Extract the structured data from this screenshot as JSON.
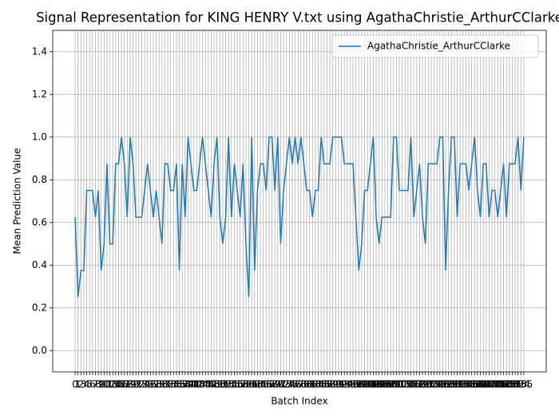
{
  "chart_data": {
    "type": "line",
    "title": "Signal Representation for KING HENRY V.txt using AgathaChristie_ArthurCClarke",
    "xlabel": "Batch Index",
    "ylabel": "Mean Prediction Value",
    "x": [
      0,
      1,
      2,
      3,
      4,
      5,
      6,
      7,
      8,
      9,
      10,
      11,
      12,
      13,
      14,
      15,
      16,
      17,
      18,
      19,
      20,
      21,
      22,
      23,
      24,
      25,
      26,
      27,
      28,
      29,
      30,
      31,
      32,
      33,
      34,
      35,
      36,
      37,
      38,
      39,
      40,
      41,
      42,
      43,
      44,
      45,
      46,
      47,
      48,
      49,
      50,
      51,
      52,
      53,
      54,
      55,
      56,
      57,
      58,
      59,
      60,
      61,
      62,
      63,
      64,
      65,
      66,
      67,
      68,
      69,
      70,
      71,
      72,
      73,
      74,
      75,
      76,
      77,
      78,
      79,
      80,
      81,
      82,
      83,
      84,
      85,
      86,
      87,
      88,
      89,
      90,
      91,
      92,
      93,
      94,
      95,
      96,
      97,
      98,
      99,
      100,
      101,
      102,
      103,
      104,
      105,
      106,
      107,
      108,
      109,
      110,
      111,
      112,
      113,
      114,
      115,
      116,
      117,
      118,
      119,
      120,
      121,
      122,
      123,
      124,
      125,
      126,
      127,
      128,
      129,
      130,
      131,
      132,
      133,
      134,
      135,
      136,
      137,
      138,
      139,
      140,
      141,
      142,
      143,
      144,
      145,
      146,
      147,
      148,
      149,
      150,
      151,
      152,
      153,
      154,
      155
    ],
    "series": [
      {
        "name": "AgathaChristie_ArthurCClarke",
        "color": "#1f77b4",
        "values": [
          0.625,
          0.25,
          0.375,
          0.375,
          0.75,
          0.75,
          0.75,
          0.625,
          0.75,
          0.375,
          0.5,
          0.875,
          0.5,
          0.5,
          0.875,
          0.875,
          1.0,
          0.875,
          0.625,
          1.0,
          0.875,
          0.625,
          0.625,
          0.625,
          0.75,
          0.875,
          0.75,
          0.625,
          0.75,
          0.625,
          0.5,
          0.875,
          0.875,
          0.75,
          0.75,
          0.875,
          0.375,
          0.875,
          0.625,
          1.0,
          0.875,
          0.75,
          0.75,
          0.875,
          1.0,
          0.875,
          0.75,
          0.625,
          0.875,
          1.0,
          0.625,
          0.5,
          0.625,
          1.0,
          0.625,
          0.875,
          0.75,
          0.625,
          0.875,
          0.5,
          0.25,
          1.0,
          0.375,
          0.75,
          0.875,
          0.875,
          0.75,
          1.0,
          1.0,
          0.75,
          1.0,
          0.5,
          0.75,
          0.875,
          1.0,
          0.875,
          1.0,
          0.875,
          1.0,
          0.875,
          0.75,
          0.75,
          0.625,
          0.75,
          0.75,
          1.0,
          0.875,
          0.875,
          0.875,
          1.0,
          1.0,
          1.0,
          1.0,
          0.875,
          0.875,
          0.875,
          0.875,
          0.625,
          0.375,
          0.5,
          0.75,
          0.75,
          0.875,
          1.0,
          0.625,
          0.5,
          0.625,
          0.625,
          0.625,
          0.625,
          1.0,
          1.0,
          0.75,
          0.75,
          0.75,
          0.75,
          1.0,
          0.625,
          0.75,
          0.875,
          0.625,
          0.5,
          0.875,
          0.875,
          0.875,
          0.875,
          1.0,
          1.0,
          0.375,
          0.75,
          1.0,
          1.0,
          0.625,
          0.875,
          0.875,
          0.875,
          0.75,
          0.875,
          1.0,
          0.75,
          0.625,
          0.875,
          0.875,
          0.625,
          0.75,
          0.75,
          0.625,
          0.75,
          0.875,
          0.625,
          0.875,
          0.875,
          0.875,
          1.0,
          0.75,
          1.0
        ]
      }
    ],
    "xlim": [
      -7.75,
      162.75
    ],
    "xticks": [
      0,
      1,
      2,
      3,
      4,
      5,
      6,
      7,
      8,
      9,
      10,
      11,
      12,
      13,
      14,
      15,
      16,
      17,
      18,
      19,
      20,
      21,
      22,
      23,
      24,
      25,
      26,
      27,
      28,
      29,
      30,
      31,
      32,
      33,
      34,
      35,
      36,
      37,
      38,
      39,
      40,
      41,
      42,
      43,
      44,
      45,
      46,
      47,
      48,
      49,
      50,
      51,
      52,
      53,
      54,
      55,
      56,
      57,
      58,
      59,
      60,
      61,
      62,
      63,
      64,
      65,
      66,
      67,
      68,
      69,
      70,
      71,
      72,
      73,
      74,
      75,
      76,
      77,
      78,
      79,
      80,
      81,
      82,
      83,
      84,
      85,
      86,
      87,
      88,
      89,
      90,
      91,
      92,
      93,
      94,
      95,
      96,
      97,
      98,
      99,
      100,
      101,
      102,
      103,
      104,
      105,
      106,
      107,
      108,
      109,
      110,
      111,
      112,
      113,
      114,
      115,
      116,
      117,
      118,
      119,
      120,
      121,
      122,
      123,
      124,
      125,
      126,
      127,
      128,
      129,
      130,
      131,
      132,
      133,
      134,
      135,
      136,
      137,
      138,
      139,
      140,
      141,
      142,
      143,
      144,
      145,
      146,
      147,
      148,
      149,
      150,
      151,
      152,
      153,
      154,
      155
    ],
    "ylim": [
      -0.1,
      1.5
    ],
    "yticks": [
      {
        "value": 0,
        "label": "0.0"
      },
      0.2,
      0.4,
      0.6,
      0.8,
      {
        "value": 1,
        "label": "1.0"
      },
      1.2,
      1.4
    ],
    "grid": true,
    "legend": "upper right"
  }
}
